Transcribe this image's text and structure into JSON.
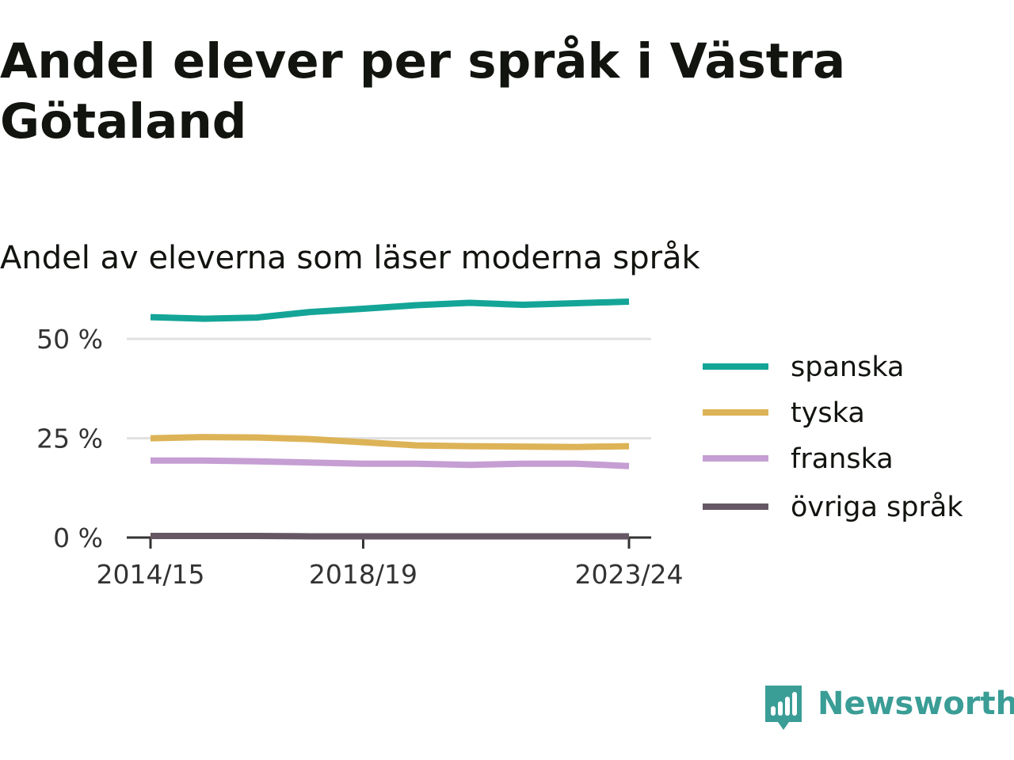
{
  "title": "Andel elever per språk i Västra Götaland",
  "subtitle": "Andel av eleverna som läser moderna språk",
  "brand": {
    "name": "Newsworthy",
    "color": "#3a9d96"
  },
  "chart_data": {
    "type": "line",
    "title": "Andel elever per språk i Västra Götaland",
    "subtitle": "Andel av eleverna som läser moderna språk",
    "xlabel": "",
    "ylabel": "",
    "x": [
      "2014/15",
      "2015/16",
      "2016/17",
      "2017/18",
      "2018/19",
      "2019/20",
      "2020/21",
      "2021/22",
      "2022/23",
      "2023/24"
    ],
    "x_tick_labels": [
      "2014/15",
      "2018/19",
      "2023/24"
    ],
    "y_tick_values": [
      0,
      25,
      50
    ],
    "y_tick_labels": [
      "0 %",
      "25 %",
      "50 %"
    ],
    "ylim": [
      0,
      60
    ],
    "grid": true,
    "legend_position": "right",
    "series": [
      {
        "name": "spanska",
        "color": "#14a597",
        "values": [
          55.5,
          55.1,
          55.4,
          56.8,
          57.6,
          58.5,
          59.1,
          58.6,
          59.0,
          59.4
        ]
      },
      {
        "name": "tyska",
        "color": "#ddb357",
        "values": [
          25.0,
          25.3,
          25.2,
          24.8,
          24.0,
          23.2,
          23.0,
          22.9,
          22.8,
          23.0
        ]
      },
      {
        "name": "franska",
        "color": "#c59ed3",
        "values": [
          19.4,
          19.4,
          19.2,
          18.9,
          18.6,
          18.6,
          18.3,
          18.6,
          18.6,
          18.0
        ]
      },
      {
        "name": "övriga språk",
        "color": "#655864",
        "values": [
          0.4,
          0.4,
          0.4,
          0.3,
          0.3,
          0.3,
          0.3,
          0.3,
          0.3,
          0.3
        ]
      }
    ]
  }
}
